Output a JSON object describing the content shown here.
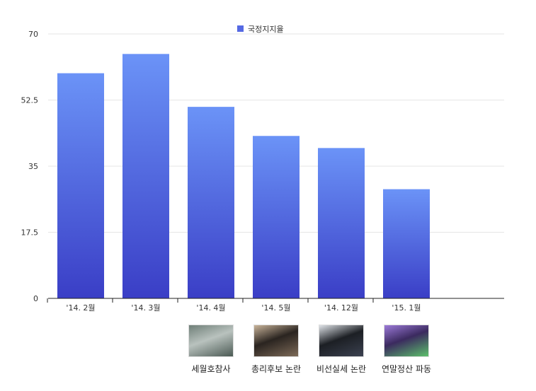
{
  "chart_data": {
    "type": "bar",
    "categories": [
      "'14. 2월",
      "'14. 3월",
      "'14. 4월",
      "'14. 5월",
      "'14. 12월",
      "'15. 1월"
    ],
    "series": [
      {
        "name": "국정지지율",
        "values": [
          59.6,
          64.7,
          50.7,
          43.0,
          39.8,
          28.9
        ]
      }
    ],
    "yticks": [
      "0",
      "17.5",
      "35",
      "52.5",
      "70"
    ],
    "ylim": [
      0,
      70
    ],
    "legend_position": "top-center",
    "grid": true,
    "colors": {
      "bar_top": "#6b93f7",
      "bar_bottom": "#3a3ec6",
      "legend": "#5569e3"
    }
  },
  "events": [
    {
      "label": "세월호참사",
      "category": "'14. 4월",
      "thumb_colors": [
        "#b9c2be",
        "#6f7f78",
        "#4b5a54"
      ]
    },
    {
      "label": "총리후보 논란",
      "category": "'14. 5월",
      "thumb_colors": [
        "#2a2420",
        "#c9b49a",
        "#7d6a58"
      ]
    },
    {
      "label": "비선실세 논란",
      "category": "'14. 12월",
      "thumb_colors": [
        "#1c1f24",
        "#dfe3e8",
        "#3b4150"
      ]
    },
    {
      "label": "연말정산 파동",
      "category": "'15. 1월",
      "thumb_colors": [
        "#3b2a5f",
        "#9c7ad8",
        "#5bbf6a"
      ]
    }
  ]
}
